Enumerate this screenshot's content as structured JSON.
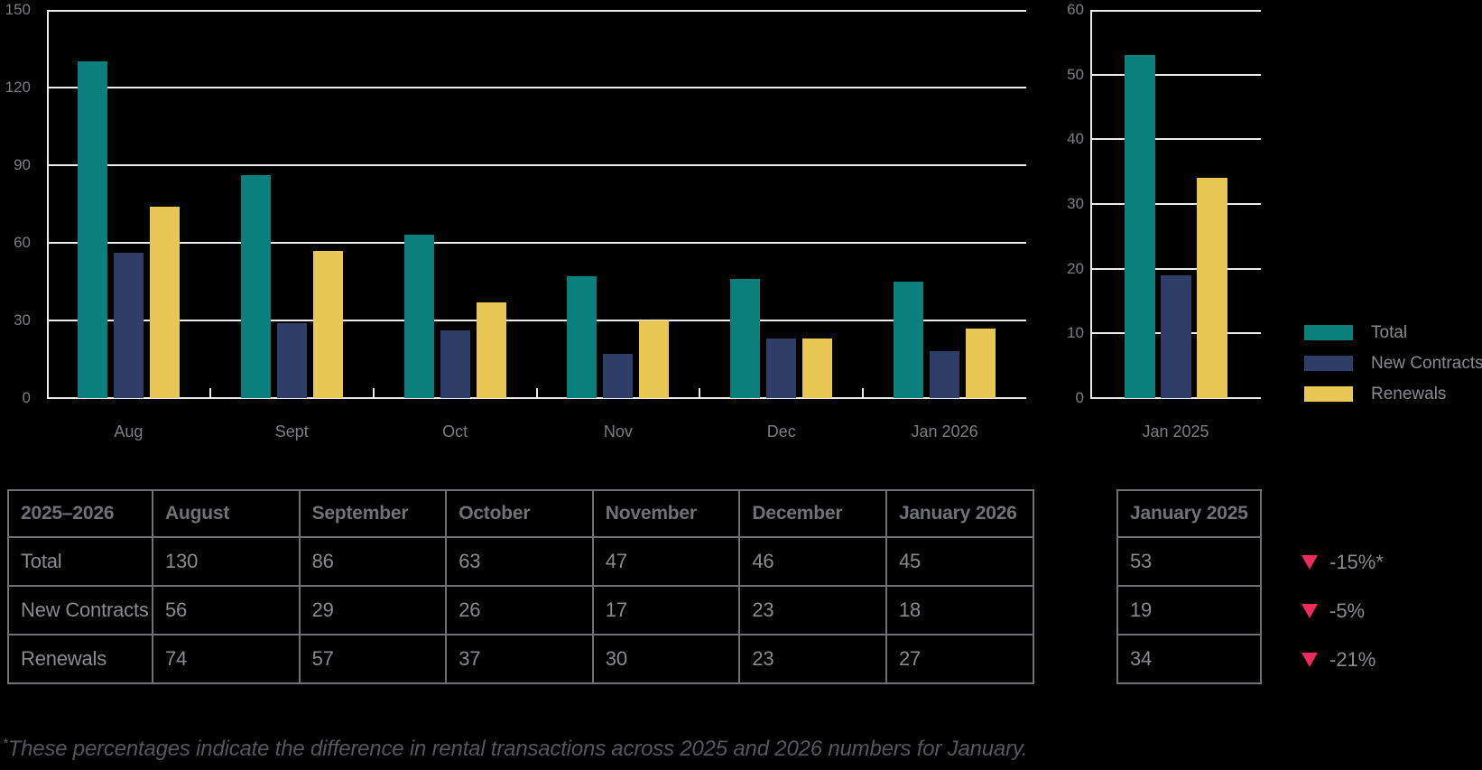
{
  "colors": {
    "background": "#000000",
    "grid": "#ededed",
    "series": [
      "#0b7f7c",
      "#2f3e66",
      "#e9c755"
    ],
    "negative": "#ee2b5c"
  },
  "legend": {
    "items": [
      "Total",
      "New Contracts",
      "Renewals"
    ]
  },
  "chart_data": [
    {
      "type": "bar",
      "categories": [
        "Aug",
        "Sept",
        "Oct",
        "Nov",
        "Dec",
        "Jan 2026"
      ],
      "series": [
        {
          "name": "Total",
          "values": [
            130,
            86,
            63,
            47,
            46,
            45
          ]
        },
        {
          "name": "New Contracts",
          "values": [
            56,
            29,
            26,
            17,
            23,
            18
          ]
        },
        {
          "name": "Renewals",
          "values": [
            74,
            57,
            37,
            30,
            23,
            27
          ]
        }
      ],
      "ylim": [
        0,
        150
      ],
      "y_ticks": [
        0,
        30,
        60,
        90,
        120,
        150
      ],
      "grid": true,
      "legend_position": "none"
    },
    {
      "type": "bar",
      "categories": [
        "Jan 2025"
      ],
      "series": [
        {
          "name": "Total",
          "values": [
            53
          ]
        },
        {
          "name": "New Contracts",
          "values": [
            19
          ]
        },
        {
          "name": "Renewals",
          "values": [
            34
          ]
        }
      ],
      "ylim": [
        0,
        60
      ],
      "y_ticks": [
        0,
        10,
        20,
        30,
        40,
        50,
        60
      ],
      "grid": true,
      "legend_position": "right"
    }
  ],
  "tables": {
    "monthly": {
      "header_row": [
        "2025–2026",
        "August",
        "September",
        "October",
        "November",
        "December",
        "January 2026"
      ],
      "rows": [
        [
          "Total",
          "130",
          "86",
          "63",
          "47",
          "46",
          "45"
        ],
        [
          "New Contracts",
          "56",
          "29",
          "26",
          "17",
          "23",
          "18"
        ],
        [
          "Renewals",
          "74",
          "57",
          "37",
          "30",
          "23",
          "27"
        ]
      ]
    },
    "january_2025": {
      "header": "January 2025",
      "values": [
        "53",
        "19",
        "34"
      ]
    }
  },
  "deltas": [
    {
      "direction": "down",
      "label": "-15%*"
    },
    {
      "direction": "down",
      "label": "-5%"
    },
    {
      "direction": "down",
      "label": "-21%"
    }
  ],
  "footnote": {
    "marker": "*",
    "text": "These percentages indicate the difference in rental transactions across 2025 and 2026 numbers for January."
  }
}
